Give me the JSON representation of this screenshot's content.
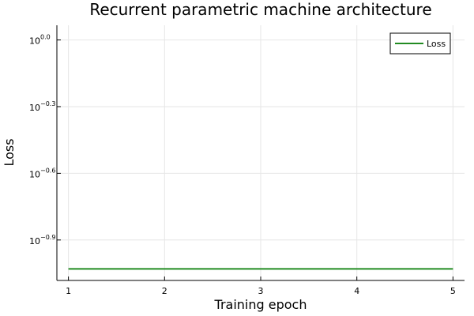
{
  "chart_data": {
    "type": "line",
    "title": "Recurrent parametric machine architecture",
    "xlabel": "Training epoch",
    "ylabel": "Loss",
    "x": [
      1,
      2,
      3,
      4,
      5
    ],
    "series": [
      {
        "name": "Loss",
        "color": "#228B22",
        "values": [
          0.0933,
          0.0933,
          0.0933,
          0.0933,
          0.0933
        ]
      }
    ],
    "xlim": [
      0.88,
      5.12
    ],
    "ylim_log10": [
      -1.082,
      0.066
    ],
    "y_scale": "log10",
    "x_ticks": [
      "1",
      "2",
      "3",
      "4",
      "5"
    ],
    "y_ticks": [
      {
        "base": "10",
        "exp": "0.0"
      },
      {
        "base": "10",
        "exp": "−0.3"
      },
      {
        "base": "10",
        "exp": "−0.6"
      },
      {
        "base": "10",
        "exp": "−0.9"
      }
    ],
    "grid": true,
    "legend_position": "top-right"
  }
}
